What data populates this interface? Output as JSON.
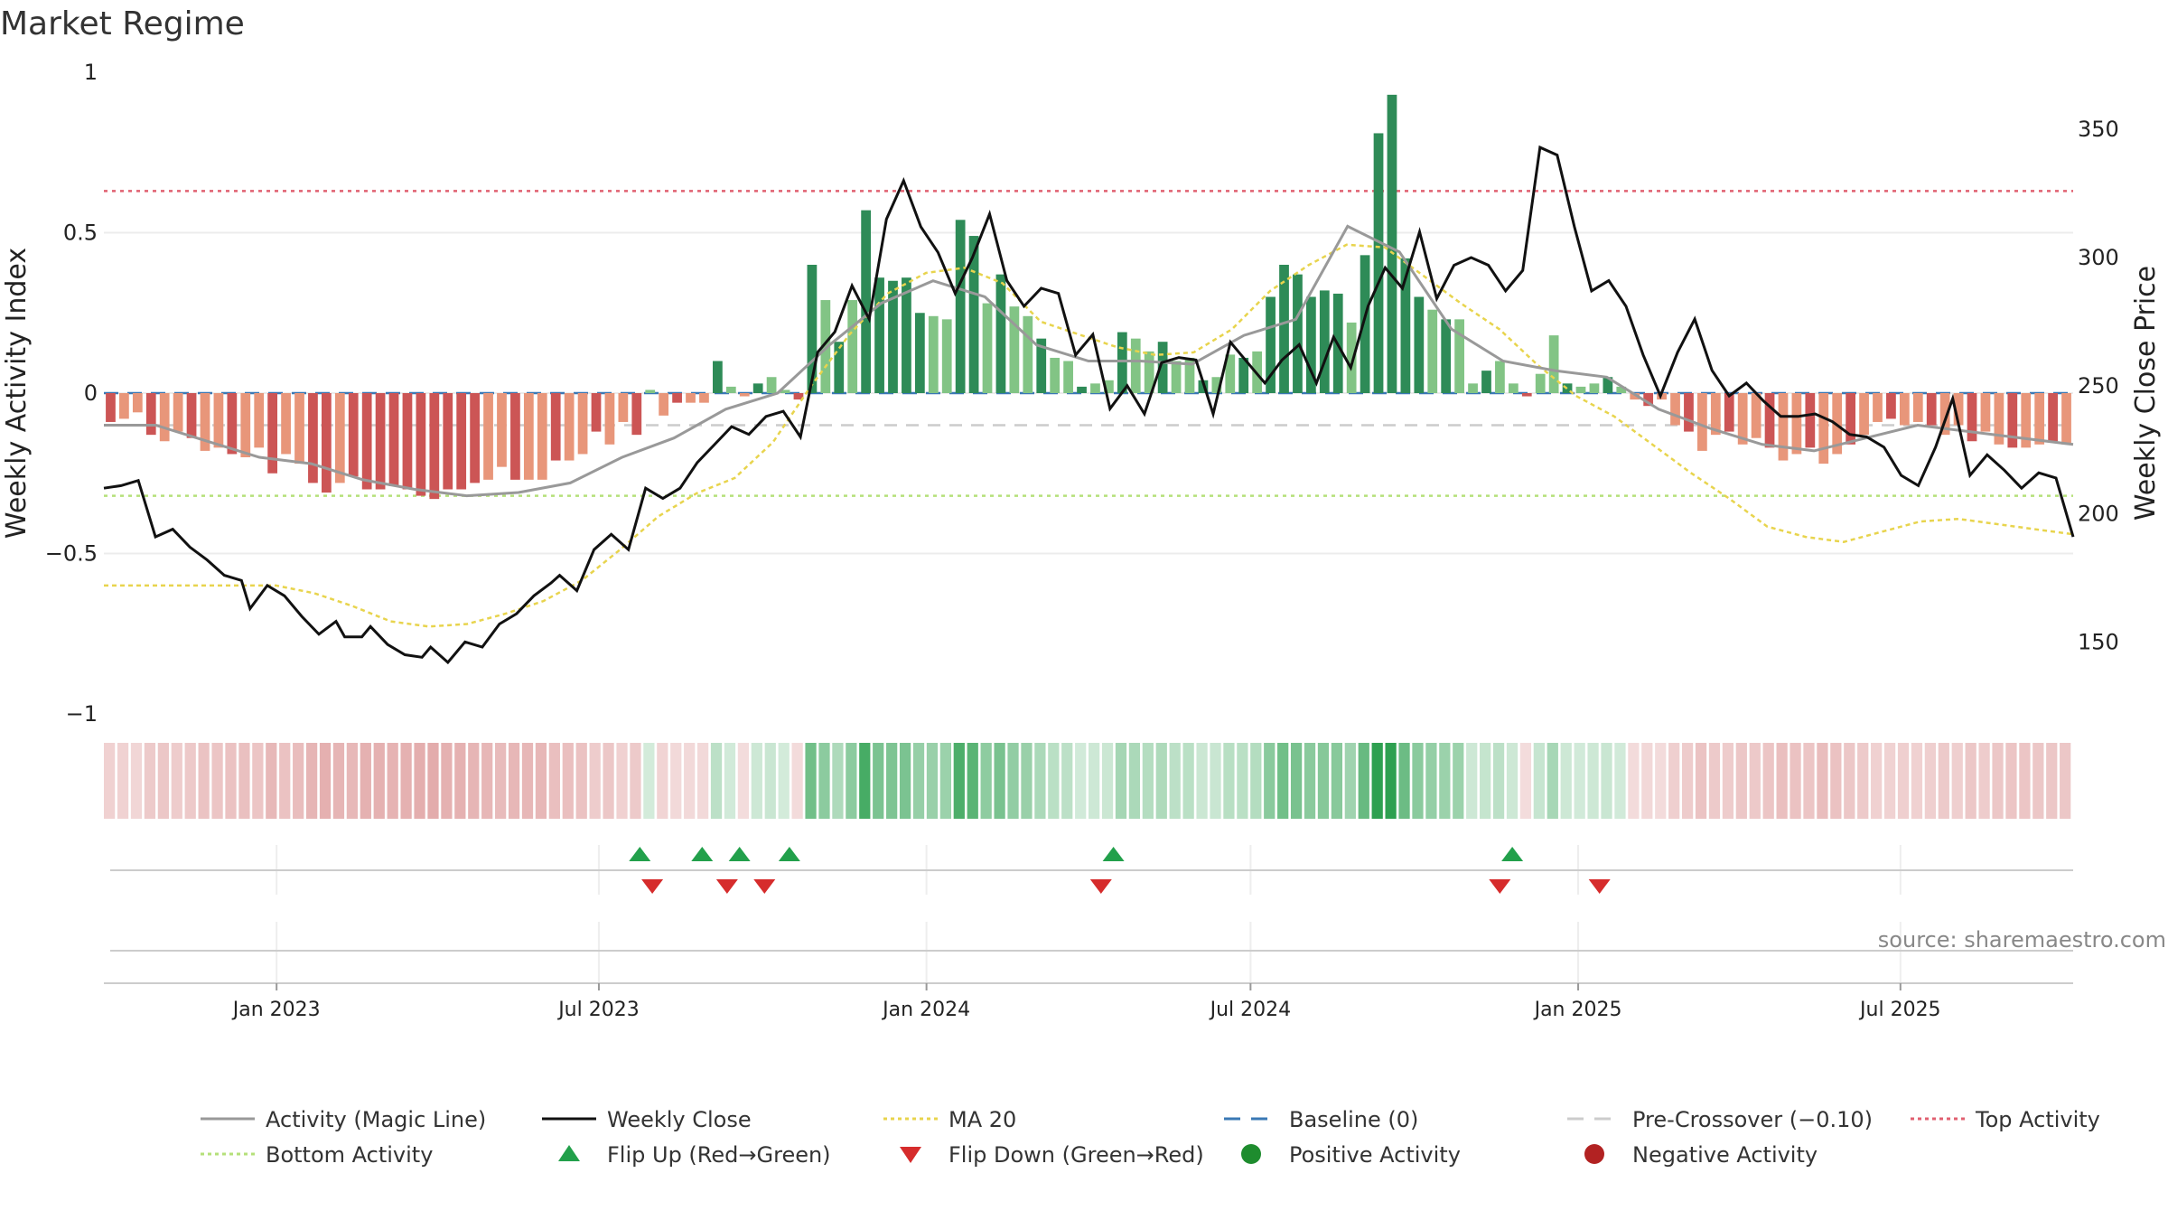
{
  "title": "Market Regime",
  "source": "source: sharemaestro.com",
  "y_left_label": "Weekly Activity Index",
  "y_right_label": "Weekly Close Price",
  "y_left_ticks": [
    "1",
    "0.5",
    "0",
    "−0.5",
    "−1"
  ],
  "y_right_ticks": [
    "350",
    "300",
    "250",
    "200",
    "150"
  ],
  "date_ticks": [
    "Jan 2023",
    "Jul 2023",
    "Jan 2024",
    "Jul 2024",
    "Jan 2025",
    "Jul 2025"
  ],
  "legend": [
    {
      "label": "Activity (Magic Line)",
      "kind": "line",
      "color": "#999999"
    },
    {
      "label": "Weekly Close",
      "kind": "line",
      "color": "#111111"
    },
    {
      "label": "MA 20",
      "kind": "dotted",
      "color": "#e8d44d"
    },
    {
      "label": "Baseline (0)",
      "kind": "dashed",
      "color": "#3a78b5"
    },
    {
      "label": "Pre-Crossover (−0.10)",
      "kind": "dashed",
      "color": "#cccccc"
    },
    {
      "label": "Top Activity",
      "kind": "dotted",
      "color": "#e06070"
    },
    {
      "label": "Bottom Activity",
      "kind": "dotted",
      "color": "#b5e07a"
    },
    {
      "label": "Flip Up (Red→Green)",
      "kind": "tri-up",
      "color": "#22a04b"
    },
    {
      "label": "Flip Down (Green→Red)",
      "kind": "tri-down",
      "color": "#d62c2c"
    },
    {
      "label": "Positive Activity",
      "kind": "dot",
      "color": "#1e8c2e"
    },
    {
      "label": "Negative Activity",
      "kind": "dot",
      "color": "#b22222"
    }
  ],
  "colors": {
    "pos_strong": "#2e8b57",
    "pos_light": "#82c485",
    "neg_strong": "#cc5555",
    "neg_light": "#e8967a",
    "top_line": "#e06070",
    "bottom_line": "#b5e07a",
    "baseline": "#3a78b5",
    "precross": "#cccccc",
    "ma": "#e8d44d",
    "magic": "#999999",
    "close": "#111111",
    "flip_up": "#22a04b",
    "flip_down": "#d62c2c"
  },
  "chart_data": {
    "type": "bar+line",
    "x_start": "2022-09-26",
    "x_end": "2025-10-06",
    "y_left_range": [
      -1,
      1
    ],
    "y_right_range": [
      121.9,
      372.3
    ],
    "top_activity": 0.63,
    "bottom_activity": -0.32,
    "baseline": 0,
    "pre_crossover": -0.1,
    "activity_weekly": [
      -0.09,
      -0.08,
      -0.06,
      -0.13,
      -0.15,
      -0.12,
      -0.14,
      -0.18,
      -0.17,
      -0.19,
      -0.2,
      -0.17,
      -0.25,
      -0.19,
      -0.22,
      -0.28,
      -0.31,
      -0.28,
      -0.26,
      -0.3,
      -0.3,
      -0.29,
      -0.3,
      -0.32,
      -0.33,
      -0.3,
      -0.3,
      -0.28,
      -0.27,
      -0.23,
      -0.27,
      -0.27,
      -0.27,
      -0.21,
      -0.21,
      -0.19,
      -0.12,
      -0.16,
      -0.09,
      -0.13,
      0.01,
      -0.07,
      -0.03,
      -0.03,
      -0.03,
      0.1,
      0.02,
      -0.01,
      0.03,
      0.05,
      0.01,
      -0.02,
      0.4,
      0.29,
      0.16,
      0.29,
      0.57,
      0.36,
      0.35,
      0.36,
      0.25,
      0.24,
      0.23,
      0.54,
      0.49,
      0.28,
      0.37,
      0.27,
      0.24,
      0.17,
      0.11,
      0.1,
      0.02,
      0.03,
      0.04,
      0.19,
      0.17,
      0.13,
      0.16,
      0.1,
      0.11,
      0.04,
      0.05,
      0.12,
      0.11,
      0.13,
      0.3,
      0.4,
      0.37,
      0.3,
      0.32,
      0.31,
      0.22,
      0.43,
      0.81,
      0.93,
      0.42,
      0.3,
      0.26,
      0.23,
      0.23,
      0.03,
      0.07,
      0.1,
      0.03,
      -0.01,
      0.06,
      0.18,
      0.03,
      0.02,
      0.03,
      0.05,
      0.02,
      -0.02,
      -0.04,
      -0.02,
      -0.1,
      -0.12,
      -0.18,
      -0.13,
      -0.12,
      -0.16,
      -0.14,
      -0.17,
      -0.21,
      -0.19,
      -0.17,
      -0.22,
      -0.19,
      -0.16,
      -0.13,
      -0.09,
      -0.08,
      -0.1,
      -0.09,
      -0.1,
      -0.13,
      -0.1,
      -0.15,
      -0.12,
      -0.16,
      -0.17,
      -0.17,
      -0.16,
      -0.15,
      -0.16
    ],
    "magic_line": [
      [
        0,
        -0.1
      ],
      [
        4,
        -0.1
      ],
      [
        8,
        -0.15
      ],
      [
        12,
        -0.2
      ],
      [
        16,
        -0.22
      ],
      [
        20,
        -0.27
      ],
      [
        24,
        -0.3
      ],
      [
        28,
        -0.32
      ],
      [
        32,
        -0.31
      ],
      [
        36,
        -0.28
      ],
      [
        40,
        -0.2
      ],
      [
        44,
        -0.14
      ],
      [
        48,
        -0.05
      ],
      [
        52,
        0.0
      ],
      [
        56,
        0.15
      ],
      [
        60,
        0.28
      ],
      [
        64,
        0.35
      ],
      [
        68,
        0.3
      ],
      [
        72,
        0.15
      ],
      [
        76,
        0.1
      ],
      [
        80,
        0.1
      ],
      [
        84,
        0.09
      ],
      [
        88,
        0.18
      ],
      [
        92,
        0.23
      ],
      [
        96,
        0.52
      ],
      [
        100,
        0.44
      ],
      [
        104,
        0.2
      ],
      [
        108,
        0.1
      ],
      [
        112,
        0.07
      ],
      [
        116,
        0.05
      ],
      [
        120,
        -0.05
      ],
      [
        124,
        -0.11
      ],
      [
        128,
        -0.16
      ],
      [
        132,
        -0.18
      ],
      [
        136,
        -0.14
      ],
      [
        140,
        -0.1
      ],
      [
        144,
        -0.12
      ],
      [
        148,
        -0.14
      ],
      [
        152,
        -0.16
      ]
    ],
    "ma20": [
      [
        0,
        172
      ],
      [
        6,
        172
      ],
      [
        12,
        172
      ],
      [
        18,
        172
      ],
      [
        22,
        169
      ],
      [
        26,
        164
      ],
      [
        30,
        158
      ],
      [
        34,
        156
      ],
      [
        38,
        157
      ],
      [
        42,
        161
      ],
      [
        46,
        166
      ],
      [
        50,
        174
      ],
      [
        54,
        186
      ],
      [
        58,
        199
      ],
      [
        62,
        208
      ],
      [
        66,
        214
      ],
      [
        70,
        228
      ],
      [
        74,
        250
      ],
      [
        78,
        270
      ],
      [
        82,
        286
      ],
      [
        86,
        294
      ],
      [
        90,
        296
      ],
      [
        94,
        290
      ],
      [
        98,
        275
      ],
      [
        102,
        270
      ],
      [
        106,
        265
      ],
      [
        110,
        262
      ],
      [
        114,
        263
      ],
      [
        118,
        272
      ],
      [
        122,
        287
      ],
      [
        126,
        297
      ],
      [
        130,
        305
      ],
      [
        134,
        304
      ],
      [
        138,
        293
      ],
      [
        142,
        282
      ],
      [
        146,
        272
      ],
      [
        150,
        258
      ],
      [
        154,
        246
      ],
      [
        158,
        238
      ],
      [
        162,
        227
      ],
      [
        166,
        216
      ],
      [
        170,
        206
      ],
      [
        174,
        195
      ],
      [
        178,
        191
      ],
      [
        182,
        189
      ],
      [
        186,
        193
      ],
      [
        190,
        197
      ],
      [
        194,
        198
      ],
      [
        198,
        196
      ],
      [
        202,
        194
      ],
      [
        206,
        192
      ]
    ],
    "close": [
      [
        0,
        210
      ],
      [
        2,
        211
      ],
      [
        4,
        213
      ],
      [
        6,
        191
      ],
      [
        8,
        194
      ],
      [
        10,
        187
      ],
      [
        12,
        182
      ],
      [
        14,
        176
      ],
      [
        16,
        174
      ],
      [
        17,
        163
      ],
      [
        19,
        172
      ],
      [
        21,
        168
      ],
      [
        23,
        160
      ],
      [
        25,
        153
      ],
      [
        27,
        158
      ],
      [
        28,
        152
      ],
      [
        30,
        152
      ],
      [
        31,
        156
      ],
      [
        33,
        149
      ],
      [
        35,
        145
      ],
      [
        37,
        144
      ],
      [
        38,
        148
      ],
      [
        40,
        142
      ],
      [
        42,
        150
      ],
      [
        44,
        148
      ],
      [
        46,
        157
      ],
      [
        48,
        161
      ],
      [
        50,
        168
      ],
      [
        52,
        173
      ],
      [
        53,
        176
      ],
      [
        55,
        170
      ],
      [
        57,
        186
      ],
      [
        59,
        192
      ],
      [
        61,
        186
      ],
      [
        63,
        210
      ],
      [
        65,
        206
      ],
      [
        67,
        210
      ],
      [
        69,
        220
      ],
      [
        71,
        227
      ],
      [
        73,
        234
      ],
      [
        75,
        231
      ],
      [
        77,
        238
      ],
      [
        79,
        240
      ],
      [
        81,
        230
      ],
      [
        83,
        263
      ],
      [
        85,
        271
      ],
      [
        87,
        289
      ],
      [
        89,
        276
      ],
      [
        91,
        315
      ],
      [
        93,
        330
      ],
      [
        95,
        312
      ],
      [
        97,
        302
      ],
      [
        99,
        286
      ],
      [
        101,
        300
      ],
      [
        103,
        317
      ],
      [
        105,
        291
      ],
      [
        107,
        281
      ],
      [
        109,
        288
      ],
      [
        111,
        286
      ],
      [
        113,
        262
      ],
      [
        115,
        270
      ],
      [
        117,
        241
      ],
      [
        119,
        250
      ],
      [
        121,
        239
      ],
      [
        123,
        259
      ],
      [
        125,
        261
      ],
      [
        127,
        260
      ],
      [
        129,
        239
      ],
      [
        131,
        267
      ],
      [
        133,
        259
      ],
      [
        135,
        251
      ],
      [
        137,
        260
      ],
      [
        139,
        266
      ],
      [
        141,
        251
      ],
      [
        143,
        269
      ],
      [
        145,
        257
      ],
      [
        147,
        281
      ],
      [
        149,
        296
      ],
      [
        151,
        288
      ],
      [
        153,
        310
      ],
      [
        155,
        284
      ],
      [
        157,
        297
      ],
      [
        159,
        300
      ],
      [
        161,
        297
      ],
      [
        163,
        287
      ],
      [
        165,
        295
      ],
      [
        167,
        343
      ],
      [
        169,
        340
      ],
      [
        171,
        312
      ],
      [
        173,
        287
      ],
      [
        175,
        291
      ],
      [
        177,
        281
      ],
      [
        179,
        262
      ],
      [
        181,
        246
      ],
      [
        183,
        263
      ],
      [
        185,
        276
      ],
      [
        187,
        256
      ],
      [
        189,
        246
      ],
      [
        191,
        251
      ],
      [
        193,
        244
      ],
      [
        195,
        238
      ],
      [
        197,
        238
      ],
      [
        199,
        239
      ],
      [
        201,
        236
      ],
      [
        203,
        231
      ],
      [
        205,
        230
      ],
      [
        207,
        226
      ],
      [
        209,
        215
      ],
      [
        211,
        211
      ],
      [
        213,
        226
      ],
      [
        215,
        245
      ],
      [
        217,
        215
      ],
      [
        219,
        223
      ],
      [
        221,
        217
      ],
      [
        223,
        210
      ],
      [
        225,
        216
      ],
      [
        227,
        214
      ],
      [
        229,
        191
      ]
    ],
    "strip_levels": [],
    "flip_up_dates": [
      "2023-07-24",
      "2023-08-28",
      "2023-09-18",
      "2023-10-16",
      "2024-04-15",
      "2024-11-25"
    ],
    "flip_down_dates": [
      "2023-07-31",
      "2023-09-11",
      "2023-10-02",
      "2024-04-08",
      "2024-11-18",
      "2025-01-13"
    ]
  }
}
